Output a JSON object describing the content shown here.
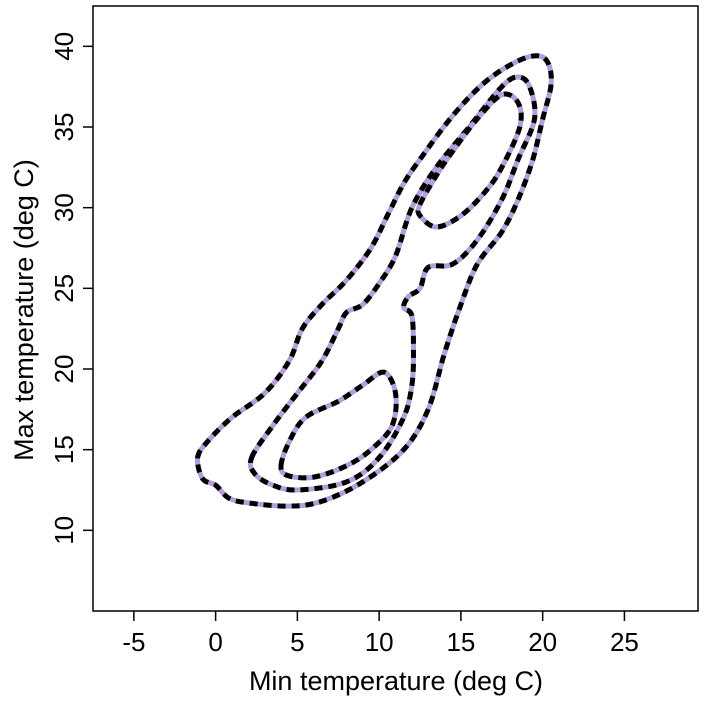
{
  "chart_data": {
    "type": "contour",
    "title": "",
    "xlabel": "Min temperature (deg C)",
    "ylabel": "Max temperature (deg C)",
    "xlim": [
      -7.5,
      29.5
    ],
    "ylim": [
      5,
      42.5
    ],
    "x_ticks": [
      -5,
      0,
      5,
      10,
      15,
      20,
      25
    ],
    "y_ticks": [
      10,
      15,
      20,
      25,
      30,
      35,
      40
    ],
    "x_tick_labels": [
      "-5",
      "0",
      "5",
      "10",
      "15",
      "20",
      "25"
    ],
    "y_tick_labels": [
      "10",
      "15",
      "20",
      "25",
      "30",
      "35",
      "40"
    ],
    "grid": false,
    "legend": "none",
    "line_style": {
      "under_color": "#b39ddb",
      "dash_color": "#000000",
      "dash": "dashed"
    },
    "series": [
      {
        "level": "outer",
        "points": [
          [
            -1.1,
            14.5
          ],
          [
            -0.5,
            15.5
          ],
          [
            1.0,
            17.0
          ],
          [
            3.0,
            18.5
          ],
          [
            4.5,
            20.5
          ],
          [
            5.3,
            22.5
          ],
          [
            6.5,
            24.0
          ],
          [
            8.0,
            25.5
          ],
          [
            9.5,
            27.5
          ],
          [
            10.5,
            29.5
          ],
          [
            11.5,
            31.5
          ],
          [
            12.5,
            33.0
          ],
          [
            14.5,
            35.7
          ],
          [
            16.5,
            37.8
          ],
          [
            18.5,
            39.1
          ],
          [
            19.8,
            39.4
          ],
          [
            20.4,
            38.8
          ],
          [
            20.5,
            37.5
          ],
          [
            20.0,
            35.5
          ],
          [
            19.4,
            33.0
          ],
          [
            18.5,
            30.5
          ],
          [
            17.5,
            28.5
          ],
          [
            16.0,
            26.5
          ],
          [
            15.0,
            24.0
          ],
          [
            14.0,
            21.0
          ],
          [
            13.0,
            17.5
          ],
          [
            11.5,
            15.0
          ],
          [
            9.0,
            13.0
          ],
          [
            6.5,
            11.8
          ],
          [
            4.5,
            11.5
          ],
          [
            2.0,
            11.7
          ],
          [
            0.8,
            12.0
          ],
          [
            0.0,
            12.8
          ],
          [
            -0.8,
            13.2
          ],
          [
            -1.1,
            14.5
          ]
        ]
      },
      {
        "level": "middle",
        "points": [
          [
            2.2,
            14.5
          ],
          [
            3.5,
            16.5
          ],
          [
            5.0,
            18.5
          ],
          [
            6.5,
            20.5
          ],
          [
            7.5,
            22.5
          ],
          [
            8.0,
            23.5
          ],
          [
            9.0,
            24.0
          ],
          [
            10.0,
            25.3
          ],
          [
            11.0,
            27.0
          ],
          [
            12.0,
            30.0
          ],
          [
            13.5,
            32.5
          ],
          [
            15.5,
            35.0
          ],
          [
            17.5,
            37.5
          ],
          [
            18.5,
            38.1
          ],
          [
            19.2,
            37.5
          ],
          [
            19.5,
            35.5
          ],
          [
            18.5,
            33.0
          ],
          [
            17.5,
            30.5
          ],
          [
            16.0,
            28.0
          ],
          [
            14.5,
            26.5
          ],
          [
            13.0,
            26.3
          ],
          [
            12.5,
            25.0
          ],
          [
            11.8,
            24.5
          ],
          [
            11.5,
            23.8
          ],
          [
            12.0,
            23.3
          ],
          [
            12.1,
            21.0
          ],
          [
            12.0,
            19.0
          ],
          [
            11.5,
            17.0
          ],
          [
            10.0,
            14.5
          ],
          [
            8.0,
            13.0
          ],
          [
            5.0,
            12.5
          ],
          [
            3.5,
            12.8
          ],
          [
            2.4,
            13.5
          ],
          [
            2.2,
            14.5
          ]
        ]
      },
      {
        "level": "inner-top",
        "points": [
          [
            12.5,
            30.2
          ],
          [
            13.5,
            32.0
          ],
          [
            14.5,
            33.5
          ],
          [
            16.0,
            35.5
          ],
          [
            17.5,
            37.0
          ],
          [
            18.5,
            36.5
          ],
          [
            18.6,
            35.0
          ],
          [
            17.5,
            32.5
          ],
          [
            16.5,
            31.0
          ],
          [
            15.0,
            29.5
          ],
          [
            13.5,
            28.8
          ],
          [
            12.5,
            29.5
          ],
          [
            12.5,
            30.2
          ]
        ]
      },
      {
        "level": "inner-bottom",
        "points": [
          [
            4.0,
            14.0
          ],
          [
            4.5,
            15.5
          ],
          [
            5.5,
            17.0
          ],
          [
            7.5,
            18.0
          ],
          [
            9.0,
            19.0
          ],
          [
            10.3,
            19.8
          ],
          [
            11.0,
            18.5
          ],
          [
            10.8,
            16.5
          ],
          [
            9.5,
            15.0
          ],
          [
            8.0,
            14.0
          ],
          [
            6.0,
            13.3
          ],
          [
            4.4,
            13.4
          ],
          [
            4.0,
            14.0
          ]
        ]
      }
    ]
  }
}
